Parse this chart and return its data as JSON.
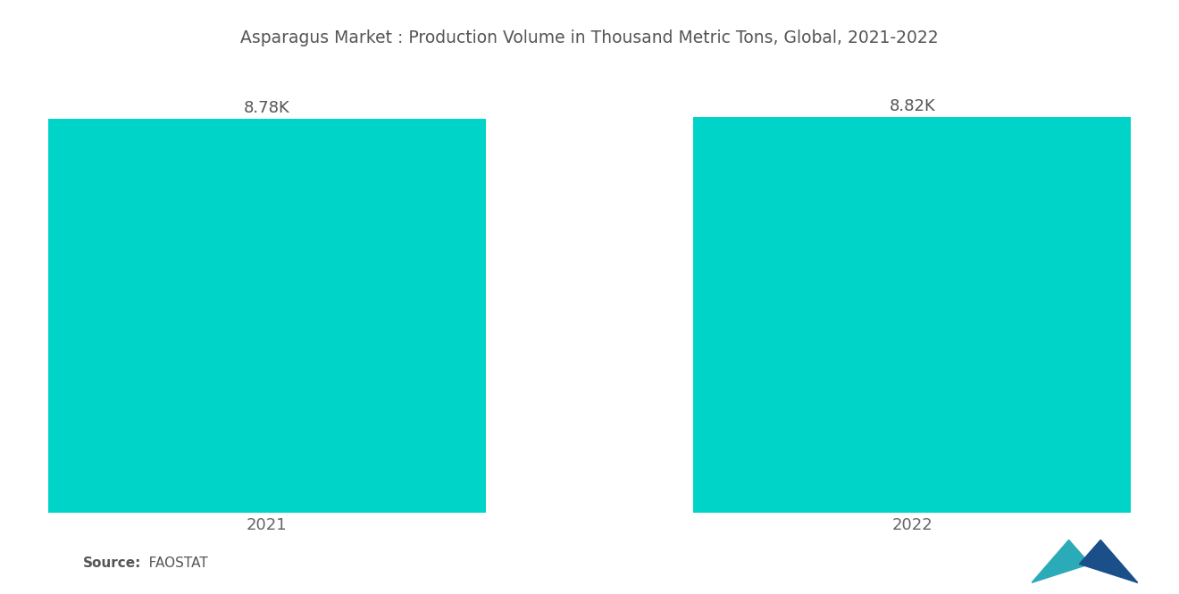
{
  "title": "Asparagus Market : Production Volume in Thousand Metric Tons, Global, 2021-2022",
  "categories": [
    "2021",
    "2022"
  ],
  "values": [
    8780,
    8820
  ],
  "labels": [
    "8.78K",
    "8.82K"
  ],
  "bar_color": "#00D4C8",
  "background_color": "#ffffff",
  "title_color": "#555555",
  "label_color": "#555555",
  "tick_color": "#666666",
  "source_bold": "Source:",
  "source_normal": "   FAOSTAT",
  "ylim_min": 0,
  "ylim_max": 9800,
  "title_fontsize": 13.5,
  "label_fontsize": 13,
  "tick_fontsize": 13,
  "source_fontsize": 11,
  "bar_width": 0.38,
  "x_positions": [
    0.22,
    0.78
  ]
}
